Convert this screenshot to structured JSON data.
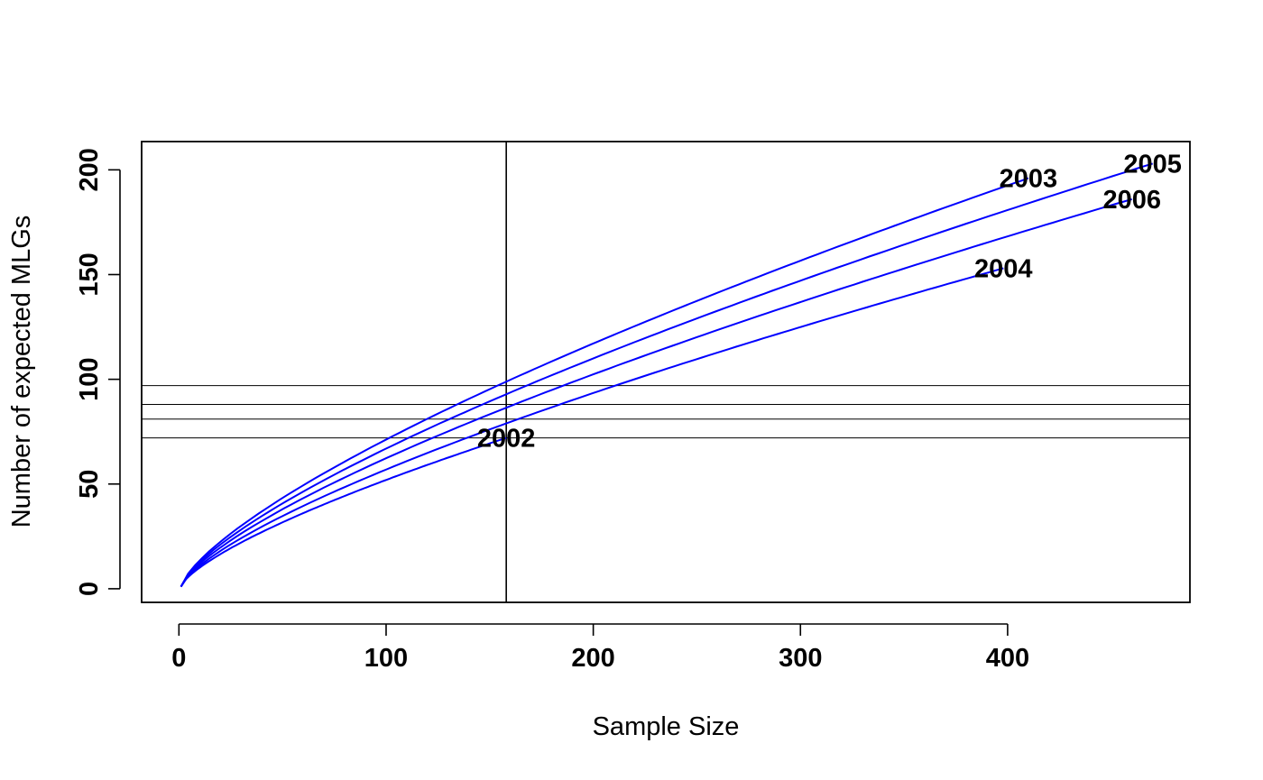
{
  "chart_data": {
    "type": "line",
    "title": "",
    "xlabel": "Sample Size",
    "ylabel": "Number of expected MLGs",
    "xlim": [
      -18,
      488
    ],
    "ylim": [
      -6.5,
      213.5
    ],
    "x_ticks": [
      0,
      100,
      200,
      300,
      400
    ],
    "y_ticks": [
      0,
      50,
      100,
      150,
      200
    ],
    "line_color": "#0000FF",
    "grid": false,
    "series": [
      {
        "name": "2002",
        "n_max": 158,
        "y_max": 72,
        "label": "2002"
      },
      {
        "name": "2003",
        "n_max": 410,
        "y_max": 196,
        "label": "2003"
      },
      {
        "name": "2004",
        "n_max": 398,
        "y_max": 153,
        "label": "2004"
      },
      {
        "name": "2005",
        "n_max": 470,
        "y_max": 203,
        "label": "2005"
      },
      {
        "name": "2006",
        "n_max": 460,
        "y_max": 186,
        "label": "2006"
      }
    ],
    "reference_lines": {
      "vertical_x": 158,
      "horizontal_y": [
        97,
        88,
        81,
        72
      ]
    }
  }
}
